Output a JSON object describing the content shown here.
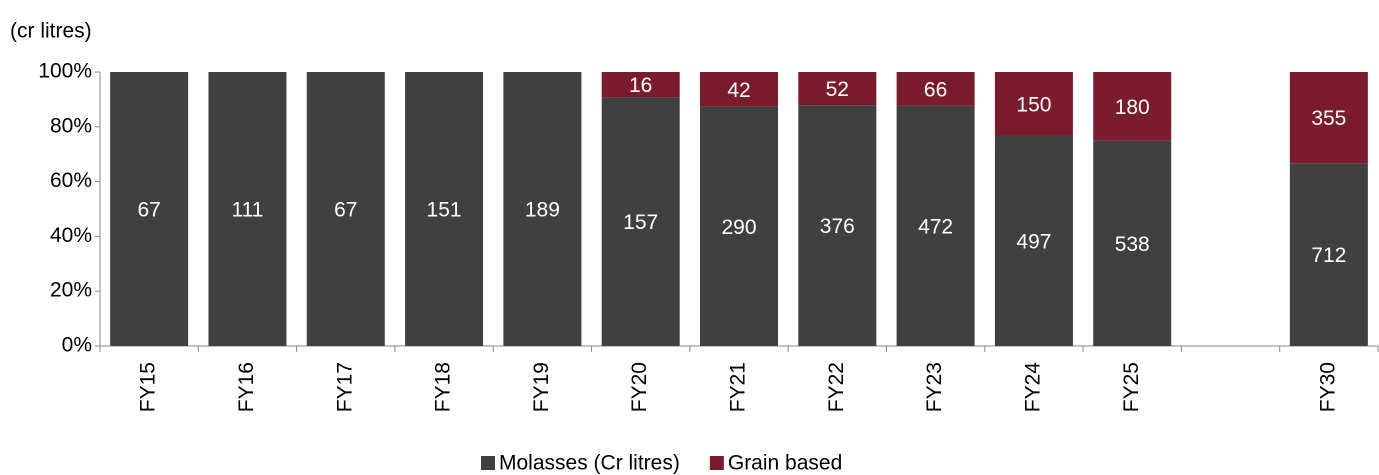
{
  "chart_data": {
    "type": "bar",
    "stacking": "percent",
    "axis_label": "(cr litres)",
    "categories": [
      "FY15",
      "FY16",
      "FY17",
      "FY18",
      "FY19",
      "FY20",
      "FY21",
      "FY22",
      "FY23",
      "FY24",
      "FY25",
      null,
      "FY30"
    ],
    "series": [
      {
        "name": "Molasses (Cr litres)",
        "color": "#404040",
        "values": [
          67,
          111,
          67,
          151,
          189,
          157,
          290,
          376,
          472,
          497,
          538,
          null,
          712
        ]
      },
      {
        "name": "Grain based",
        "color": "#7b1c2c",
        "values": [
          null,
          null,
          null,
          null,
          null,
          16,
          42,
          52,
          66,
          150,
          180,
          null,
          355
        ]
      }
    ],
    "ylim": [
      0,
      100
    ],
    "yticks": [
      {
        "value": 0,
        "label": "0%"
      },
      {
        "value": 20,
        "label": "20%"
      },
      {
        "value": 40,
        "label": "40%"
      },
      {
        "value": 60,
        "label": "60%"
      },
      {
        "value": 80,
        "label": "80%"
      },
      {
        "value": 100,
        "label": "100%"
      }
    ],
    "grid": false,
    "legend": "bottom"
  }
}
